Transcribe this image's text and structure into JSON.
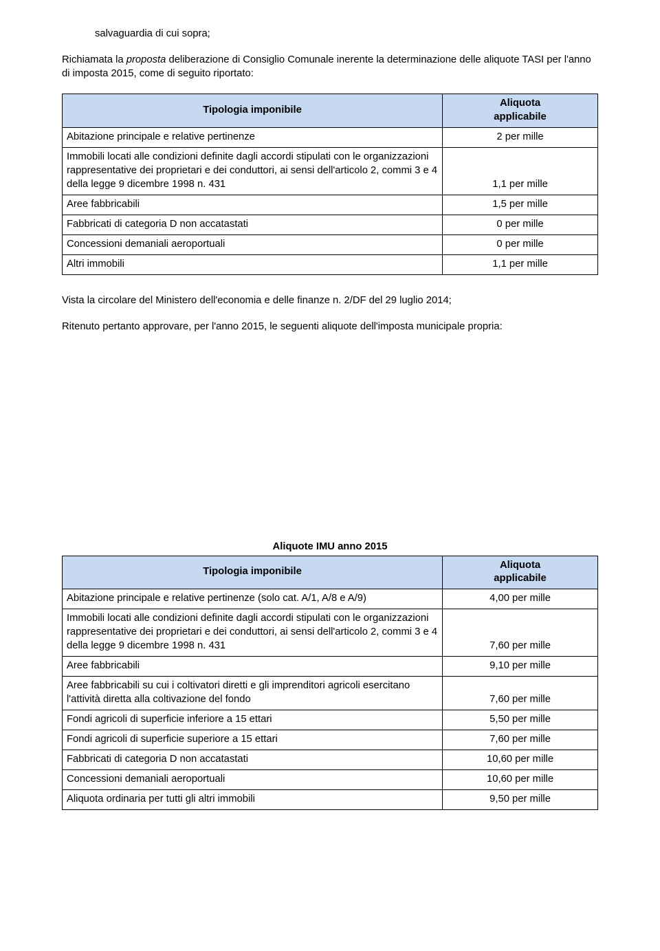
{
  "para_salv": "salvaguardia di cui sopra;",
  "para_richi_prefix": "Richiamata la ",
  "para_richi_italic": "proposta",
  "para_richi_suffix": " deliberazione di Consiglio Comunale inerente la determinazione delle aliquote TASI per l'anno di imposta 2015, come di seguito riportato:",
  "table1": {
    "header_col1": "Tipologia imponibile",
    "header_col2_line1": "Aliquota",
    "header_col2_line2": "applicabile",
    "background_color": "#c6d9f1",
    "border_color": "#000000",
    "rows": [
      {
        "desc": "Abitazione principale e relative pertinenze",
        "val": "2 per mille"
      },
      {
        "desc": "Immobili locati alle condizioni definite dagli accordi stipulati con le organizzazioni rappresentative dei proprietari e dei conduttori, ai sensi dell'articolo 2, commi 3 e 4 della legge 9 dicembre 1998 n. 431",
        "val": "1,1 per mille"
      },
      {
        "desc": "Aree fabbricabili",
        "val": "1,5 per mille"
      },
      {
        "desc": "Fabbricati di categoria D non accatastati",
        "val": "0 per mille"
      },
      {
        "desc": "Concessioni demaniali aeroportuali",
        "val": "0 per mille"
      },
      {
        "desc": "Altri immobili",
        "val": "1,1 per mille"
      }
    ]
  },
  "para_vista": "Vista la circolare del Ministero dell'economia e delle finanze n. 2/DF del 29 luglio 2014;",
  "para_ritenuto": "Ritenuto  pertanto approvare, per l'anno 2015, le seguenti aliquote dell'imposta municipale propria:",
  "table2_title": "Aliquote IMU anno 2015",
  "table2": {
    "header_col1": "Tipologia imponibile",
    "header_col2_line1": "Aliquota",
    "header_col2_line2": "applicabile",
    "background_color": "#c6d9f1",
    "border_color": "#000000",
    "rows": [
      {
        "desc": "Abitazione principale e relative pertinenze (solo cat. A/1, A/8 e A/9)",
        "val": "4,00 per mille"
      },
      {
        "desc": "Immobili locati alle condizioni definite dagli accordi stipulati con le organizzazioni rappresentative dei proprietari e dei conduttori, ai sensi dell'articolo 2, commi 3 e 4 della legge 9 dicembre 1998 n. 431",
        "val": "7,60 per mille"
      },
      {
        "desc": "Aree fabbricabili",
        "val": "9,10 per mille"
      },
      {
        "desc": "Aree fabbricabili su cui i coltivatori diretti e gli imprenditori agricoli esercitano l'attività diretta alla coltivazione del fondo",
        "val": "7,60 per mille"
      },
      {
        "desc": "Fondi agricoli di superficie inferiore a 15 ettari",
        "val": "5,50 per mille"
      },
      {
        "desc": "Fondi agricoli di superficie superiore a 15 ettari",
        "val": "7,60 per mille"
      },
      {
        "desc": "Fabbricati di categoria D non accatastati",
        "val": "10,60 per mille"
      },
      {
        "desc": "Concessioni demaniali aeroportuali",
        "val": "10,60 per mille"
      },
      {
        "desc": "Aliquota ordinaria per tutti gli altri immobili",
        "val": "9,50 per mille"
      }
    ]
  }
}
